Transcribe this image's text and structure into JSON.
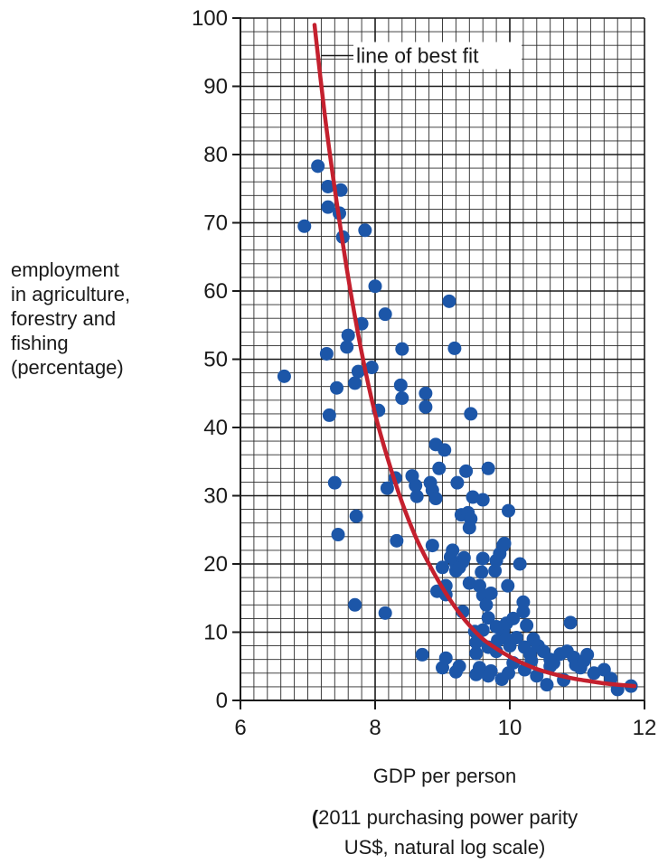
{
  "chart_data": {
    "type": "scatter",
    "title": "",
    "xlabel": "GDP per person",
    "xlabel_note": [
      "2011 purchasing power parity",
      "US$, natural log scale)"
    ],
    "xlabel_note_open": "(",
    "ylabel": [
      "employment",
      "in agriculture,",
      "forestry and",
      "fishing",
      "(percentage)"
    ],
    "xlim": [
      6,
      12
    ],
    "ylim": [
      0,
      100
    ],
    "xticks": [
      6,
      8,
      10,
      12
    ],
    "yticks": [
      0,
      10,
      20,
      30,
      40,
      50,
      60,
      70,
      80,
      90,
      100
    ],
    "grid": true,
    "grid_minor_x": 0.2,
    "grid_minor_y": 2,
    "point_color": "#1c56a8",
    "curve_color": "#c4202e",
    "annotation": "line of best fit",
    "annotation_point": [
      7.15,
      94.5
    ],
    "best_fit": {
      "name": "line of best fit",
      "x": [
        7.1,
        7.25,
        7.4,
        7.6,
        7.8,
        8.0,
        8.2,
        8.4,
        8.6,
        8.8,
        9.0,
        9.2,
        9.4,
        9.6,
        9.8,
        10.0,
        10.2,
        10.4,
        10.6,
        10.8,
        11.0,
        11.2,
        11.4,
        11.6,
        11.85
      ],
      "y": [
        99,
        86,
        75,
        62,
        51,
        42,
        35,
        29,
        24,
        20,
        16.5,
        13.5,
        11,
        9,
        7.6,
        6.4,
        5.4,
        4.6,
        4.0,
        3.5,
        3.1,
        2.8,
        2.5,
        2.3,
        2.1
      ]
    },
    "series": [
      {
        "points": [
          [
            6.65,
            47.5
          ],
          [
            6.95,
            69.5
          ],
          [
            7.15,
            78.3
          ],
          [
            7.28,
            50.8
          ],
          [
            7.3,
            72.3
          ],
          [
            7.3,
            75.3
          ],
          [
            7.32,
            41.8
          ],
          [
            7.4,
            31.9
          ],
          [
            7.43,
            45.8
          ],
          [
            7.45,
            24.3
          ],
          [
            7.47,
            71.4
          ],
          [
            7.49,
            74.8
          ],
          [
            7.52,
            67.9
          ],
          [
            7.58,
            51.8
          ],
          [
            7.6,
            53.5
          ],
          [
            7.7,
            46.5
          ],
          [
            7.7,
            14.0
          ],
          [
            7.72,
            27.0
          ],
          [
            7.75,
            48.2
          ],
          [
            7.8,
            55.2
          ],
          [
            7.85,
            68.9
          ],
          [
            7.95,
            48.8
          ],
          [
            8.0,
            60.7
          ],
          [
            8.05,
            42.5
          ],
          [
            8.15,
            56.6
          ],
          [
            8.15,
            12.8
          ],
          [
            8.18,
            31.1
          ],
          [
            8.3,
            32.6
          ],
          [
            8.32,
            23.4
          ],
          [
            8.38,
            46.2
          ],
          [
            8.4,
            44.3
          ],
          [
            8.4,
            51.5
          ],
          [
            8.55,
            32.9
          ],
          [
            8.6,
            31.5
          ],
          [
            8.62,
            29.9
          ],
          [
            8.7,
            6.7
          ],
          [
            8.75,
            45.0
          ],
          [
            8.75,
            43.0
          ],
          [
            8.82,
            31.9
          ],
          [
            8.85,
            22.7
          ],
          [
            8.85,
            30.8
          ],
          [
            8.9,
            29.6
          ],
          [
            8.9,
            37.5
          ],
          [
            8.92,
            16.0
          ],
          [
            8.95,
            34.0
          ],
          [
            9.0,
            19.5
          ],
          [
            9.0,
            4.8
          ],
          [
            9.03,
            36.7
          ],
          [
            9.05,
            6.2
          ],
          [
            9.05,
            16.8
          ],
          [
            9.05,
            15.5
          ],
          [
            9.1,
            58.5
          ],
          [
            9.12,
            21.0
          ],
          [
            9.15,
            22.0
          ],
          [
            9.18,
            51.6
          ],
          [
            9.2,
            19.0
          ],
          [
            9.2,
            20.0
          ],
          [
            9.2,
            4.2
          ],
          [
            9.22,
            31.9
          ],
          [
            9.25,
            19.5
          ],
          [
            9.25,
            5.0
          ],
          [
            9.28,
            27.2
          ],
          [
            9.3,
            20.3
          ],
          [
            9.3,
            13.0
          ],
          [
            9.32,
            20.9
          ],
          [
            9.35,
            33.6
          ],
          [
            9.38,
            27.5
          ],
          [
            9.4,
            17.2
          ],
          [
            9.4,
            25.3
          ],
          [
            9.42,
            42.0
          ],
          [
            9.42,
            26.6
          ],
          [
            9.45,
            29.8
          ],
          [
            9.48,
            10.1
          ],
          [
            9.5,
            8.5
          ],
          [
            9.5,
            6.9
          ],
          [
            9.5,
            3.8
          ],
          [
            9.55,
            4.8
          ],
          [
            9.55,
            16.8
          ],
          [
            9.58,
            18.8
          ],
          [
            9.6,
            29.4
          ],
          [
            9.6,
            20.8
          ],
          [
            9.6,
            15.4
          ],
          [
            9.6,
            10.3
          ],
          [
            9.65,
            14.0
          ],
          [
            9.68,
            34.0
          ],
          [
            9.68,
            12.1
          ],
          [
            9.68,
            7.8
          ],
          [
            9.68,
            3.6
          ],
          [
            9.72,
            15.7
          ],
          [
            9.72,
            4.3
          ],
          [
            9.78,
            19.0
          ],
          [
            9.8,
            20.5
          ],
          [
            9.8,
            10.8
          ],
          [
            9.8,
            7.2
          ],
          [
            9.82,
            8.8
          ],
          [
            9.85,
            21.5
          ],
          [
            9.88,
            3.1
          ],
          [
            9.9,
            10.2
          ],
          [
            9.9,
            22.7
          ],
          [
            9.92,
            23.0
          ],
          [
            9.95,
            11.3
          ],
          [
            9.95,
            9.0
          ],
          [
            9.97,
            16.8
          ],
          [
            9.98,
            27.8
          ],
          [
            9.98,
            4.0
          ],
          [
            10.0,
            8.0
          ],
          [
            10.05,
            5.5
          ],
          [
            10.05,
            12.0
          ],
          [
            10.1,
            9.2
          ],
          [
            10.15,
            20.0
          ],
          [
            10.2,
            14.4
          ],
          [
            10.2,
            13.0
          ],
          [
            10.22,
            7.8
          ],
          [
            10.22,
            4.5
          ],
          [
            10.25,
            11.0
          ],
          [
            10.3,
            6.8
          ],
          [
            10.32,
            5.8
          ],
          [
            10.35,
            9.0
          ],
          [
            10.4,
            3.6
          ],
          [
            10.42,
            8.0
          ],
          [
            10.5,
            7.2
          ],
          [
            10.55,
            2.3
          ],
          [
            10.6,
            6.0
          ],
          [
            10.6,
            5.0
          ],
          [
            10.65,
            5.5
          ],
          [
            10.75,
            6.8
          ],
          [
            10.8,
            3.0
          ],
          [
            10.85,
            7.2
          ],
          [
            10.9,
            11.4
          ],
          [
            10.95,
            6.3
          ],
          [
            10.98,
            5.2
          ],
          [
            11.05,
            4.8
          ],
          [
            11.1,
            5.8
          ],
          [
            11.15,
            6.7
          ],
          [
            11.25,
            4.0
          ],
          [
            11.4,
            4.5
          ],
          [
            11.5,
            3.2
          ],
          [
            11.6,
            1.6
          ],
          [
            11.8,
            2.1
          ]
        ]
      }
    ]
  }
}
